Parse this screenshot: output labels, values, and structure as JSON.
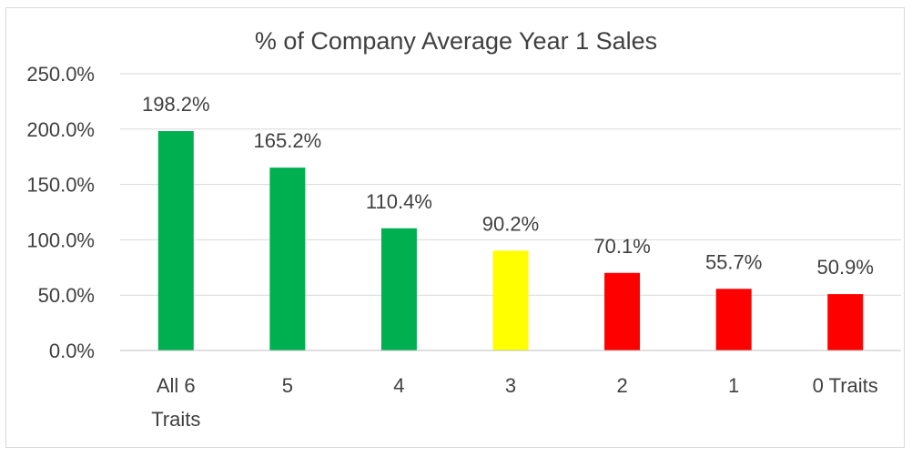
{
  "chart_data": {
    "type": "bar",
    "title": "% of Company Average Year 1 Sales",
    "xlabel": "",
    "ylabel": "",
    "categories": [
      [
        "All 6",
        "Traits"
      ],
      [
        "5"
      ],
      [
        "4"
      ],
      [
        "3"
      ],
      [
        "2"
      ],
      [
        "1"
      ],
      [
        "0 Traits"
      ]
    ],
    "values": [
      198.2,
      165.2,
      110.4,
      90.2,
      70.1,
      55.7,
      50.9
    ],
    "data_labels": [
      "198.2%",
      "165.2%",
      "110.4%",
      "90.2%",
      "70.1%",
      "55.7%",
      "50.9%"
    ],
    "colors": [
      "#00b050",
      "#00b050",
      "#00b050",
      "#ffff00",
      "#ff0000",
      "#ff0000",
      "#ff0000"
    ],
    "ylim": [
      0,
      250
    ],
    "yticks": [
      0,
      50,
      100,
      150,
      200,
      250
    ],
    "ytick_labels": [
      "0.0%",
      "50.0%",
      "100.0%",
      "150.0%",
      "200.0%",
      "250.0%"
    ],
    "grid": true,
    "legend": "none"
  }
}
